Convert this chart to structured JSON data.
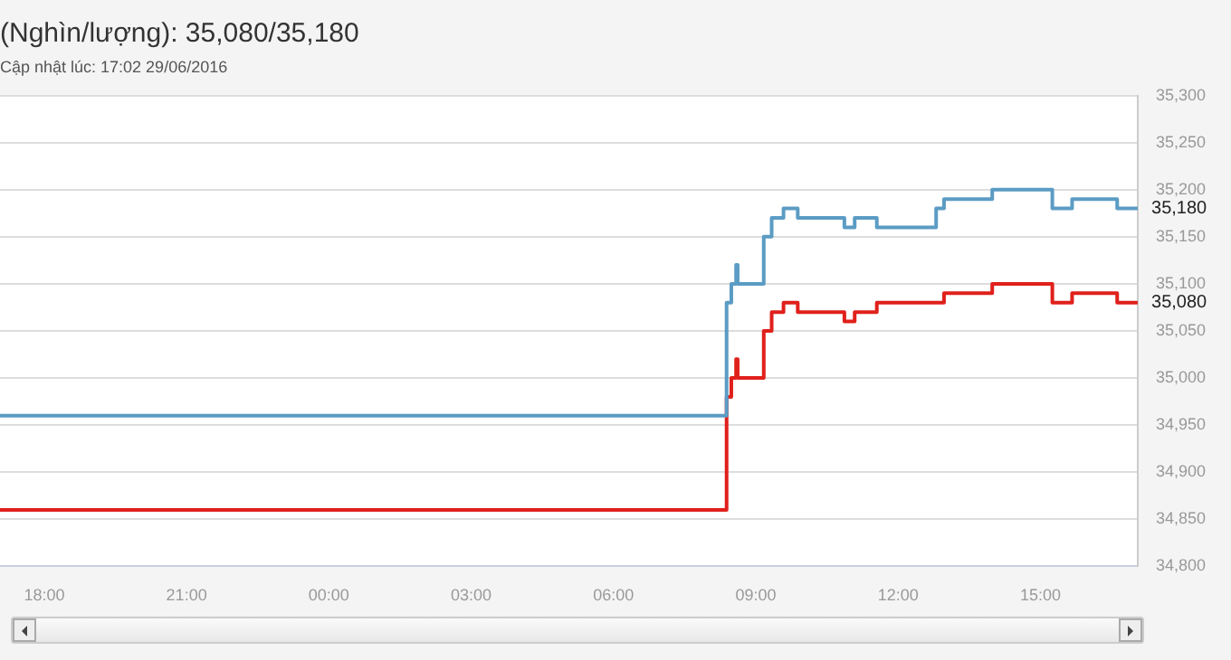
{
  "chart_data": {
    "type": "step",
    "title": "(Nghìn/lượng): 35,080/35,180",
    "subtitle": "Cập nhật lúc: 17:02 29/06/2016",
    "xlim": [
      "2016-06-28T17:04",
      "2016-06-29T17:03"
    ],
    "xticks": [
      {
        "value": "2016-06-28T18:00",
        "label": "18:00"
      },
      {
        "value": "2016-06-28T21:00",
        "label": "21:00"
      },
      {
        "value": "2016-06-29T00:00",
        "label": "00:00"
      },
      {
        "value": "2016-06-29T03:00",
        "label": "03:00"
      },
      {
        "value": "2016-06-29T06:00",
        "label": "06:00"
      },
      {
        "value": "2016-06-29T09:00",
        "label": "09:00"
      },
      {
        "value": "2016-06-29T12:00",
        "label": "12:00"
      },
      {
        "value": "2016-06-29T15:00",
        "label": "15:00"
      }
    ],
    "ylim": [
      34800,
      35300
    ],
    "yticks": [
      {
        "value": 34800,
        "label": "34,800"
      },
      {
        "value": 34850,
        "label": "34,850"
      },
      {
        "value": 34900,
        "label": "34,900"
      },
      {
        "value": 34950,
        "label": "34,950"
      },
      {
        "value": 35000,
        "label": "35,000"
      },
      {
        "value": 35050,
        "label": "35,050"
      },
      {
        "value": 35100,
        "label": "35,100"
      },
      {
        "value": 35150,
        "label": "35,150"
      },
      {
        "value": 35200,
        "label": "35,200"
      },
      {
        "value": 35250,
        "label": "35,250"
      },
      {
        "value": 35300,
        "label": "35,300"
      }
    ],
    "grid": "y",
    "legend": false,
    "marker": "none",
    "line_style": "solid",
    "x": [
      "2016-06-28T17:04",
      "2016-06-29T08:22",
      "2016-06-29T08:23",
      "2016-06-29T08:29",
      "2016-06-29T08:34",
      "2016-06-29T08:35",
      "2016-06-29T08:37",
      "2016-06-29T09:05",
      "2016-06-29T09:10",
      "2016-06-29T09:20",
      "2016-06-29T09:35",
      "2016-06-29T09:51",
      "2016-06-29T09:53",
      "2016-06-29T10:49",
      "2016-06-29T10:52",
      "2016-06-29T11:02",
      "2016-06-29T11:05",
      "2016-06-29T11:33",
      "2016-06-29T12:48",
      "2016-06-29T12:58",
      "2016-06-29T13:53",
      "2016-06-29T13:59",
      "2016-06-29T14:58",
      "2016-06-29T15:15",
      "2016-06-29T15:40",
      "2016-06-29T16:34",
      "2016-06-29T16:37",
      "2016-06-29T17:02"
    ],
    "series": [
      {
        "color": "#5b9cc4",
        "values": [
          34960,
          34960,
          35080,
          35100,
          35100,
          35120,
          35100,
          35100,
          35150,
          35170,
          35180,
          35180,
          35170,
          35170,
          35160,
          35160,
          35170,
          35160,
          35180,
          35190,
          35190,
          35200,
          35200,
          35180,
          35190,
          35190,
          35180,
          35180
        ]
      },
      {
        "color": "#e0201b",
        "values": [
          34860,
          34860,
          34980,
          35000,
          35000,
          35020,
          35000,
          35000,
          35050,
          35070,
          35080,
          35080,
          35070,
          35070,
          35060,
          35060,
          35070,
          35080,
          35080,
          35090,
          35090,
          35100,
          35100,
          35080,
          35090,
          35090,
          35080,
          35080
        ]
      }
    ],
    "annotations": [
      {
        "text": "35,180",
        "x": "2016-06-29T17:02",
        "y": 35180
      },
      {
        "text": "35,080",
        "x": "2016-06-29T17:02",
        "y": 35080
      }
    ]
  }
}
